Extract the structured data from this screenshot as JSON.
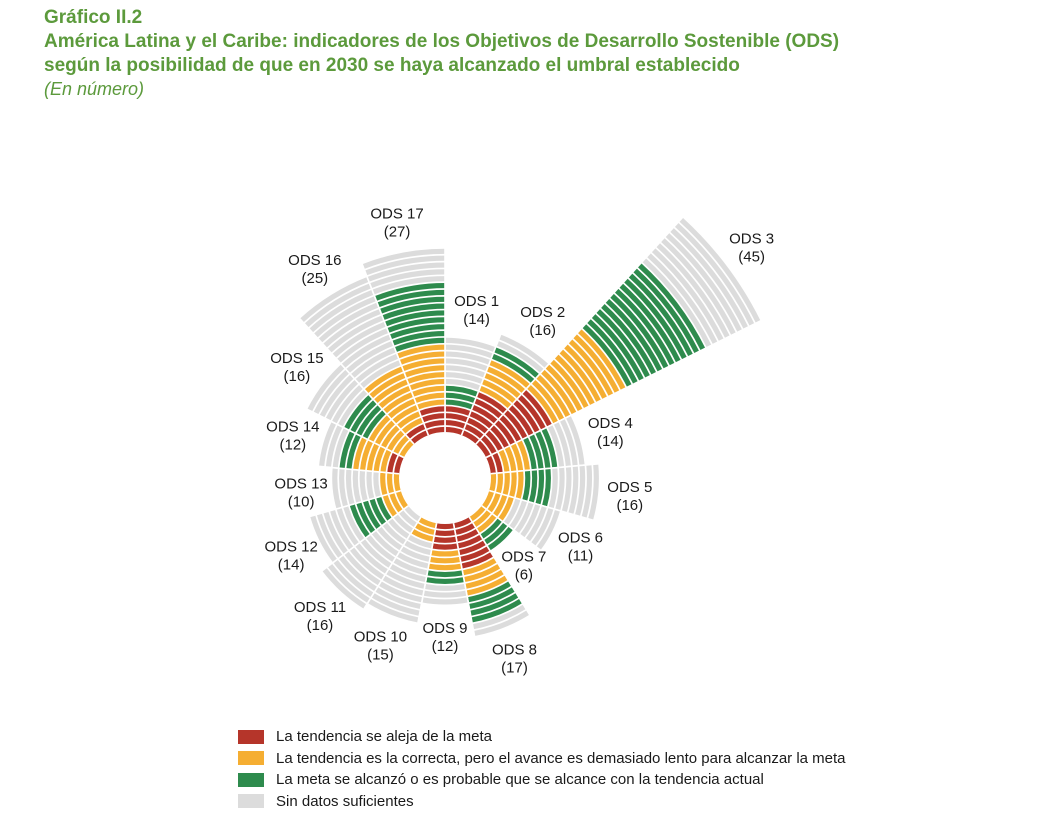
{
  "header": {
    "figure_number": "Gráfico II.2",
    "title_line1": "América Latina y el Caribe: indicadores de los Objetivos de Desarrollo Sostenible (ODS)",
    "title_line2": "según la posibilidad de que en 2030 se haya alcanzado el umbral establecido",
    "subtitle": "(En número)"
  },
  "colors": {
    "aleja": "#b5352a",
    "correcta": "#f5ae32",
    "alcanzo": "#2e8b4d",
    "sin_datos": "#dcdcdc"
  },
  "legend": [
    {
      "key": "aleja",
      "label": "La tendencia se aleja de la meta"
    },
    {
      "key": "correcta",
      "label": "La tendencia es la correcta, pero el avance es demasiado lento para alcanzar la meta"
    },
    {
      "key": "alcanzo",
      "label": "La meta se alcanzó o es probable que se alcance con la tendencia actual"
    },
    {
      "key": "sin_datos",
      "label": "Sin datos suficientes"
    }
  ],
  "chart_data": {
    "type": "radial-stacked-bar",
    "categories": [
      "ODS 1",
      "ODS 2",
      "ODS 3",
      "ODS 4",
      "ODS 5",
      "ODS 6",
      "ODS 7",
      "ODS 8",
      "ODS 9",
      "ODS 10",
      "ODS 11",
      "ODS 12",
      "ODS 13",
      "ODS 14",
      "ODS 15",
      "ODS 16",
      "ODS 17"
    ],
    "totals": [
      14,
      16,
      45,
      14,
      16,
      11,
      6,
      17,
      12,
      15,
      16,
      14,
      10,
      12,
      16,
      25,
      27
    ],
    "series": [
      {
        "name": "La tendencia se aleja de la meta",
        "key": "aleja",
        "values": [
          4,
          7,
          11,
          2,
          0,
          0,
          0,
          7,
          4,
          0,
          0,
          0,
          0,
          2,
          0,
          2,
          4
        ]
      },
      {
        "name": "La tendencia es la correcta, pero el avance es demasiado lento para alcanzar la meta",
        "key": "correcta",
        "values": [
          0,
          5,
          12,
          4,
          5,
          4,
          3,
          4,
          3,
          3,
          0,
          3,
          3,
          5,
          6,
          9,
          9
        ]
      },
      {
        "name": "La meta se alcanzó o es probable que se alcance con la tendencia actual",
        "key": "alcanzo",
        "values": [
          3,
          2,
          13,
          4,
          4,
          0,
          3,
          4,
          2,
          0,
          0,
          5,
          0,
          2,
          4,
          0,
          9
        ]
      },
      {
        "name": "Sin datos suficientes",
        "key": "sin_datos",
        "values": [
          7,
          2,
          9,
          4,
          7,
          7,
          0,
          2,
          3,
          12,
          16,
          6,
          7,
          3,
          6,
          14,
          5
        ]
      }
    ]
  }
}
